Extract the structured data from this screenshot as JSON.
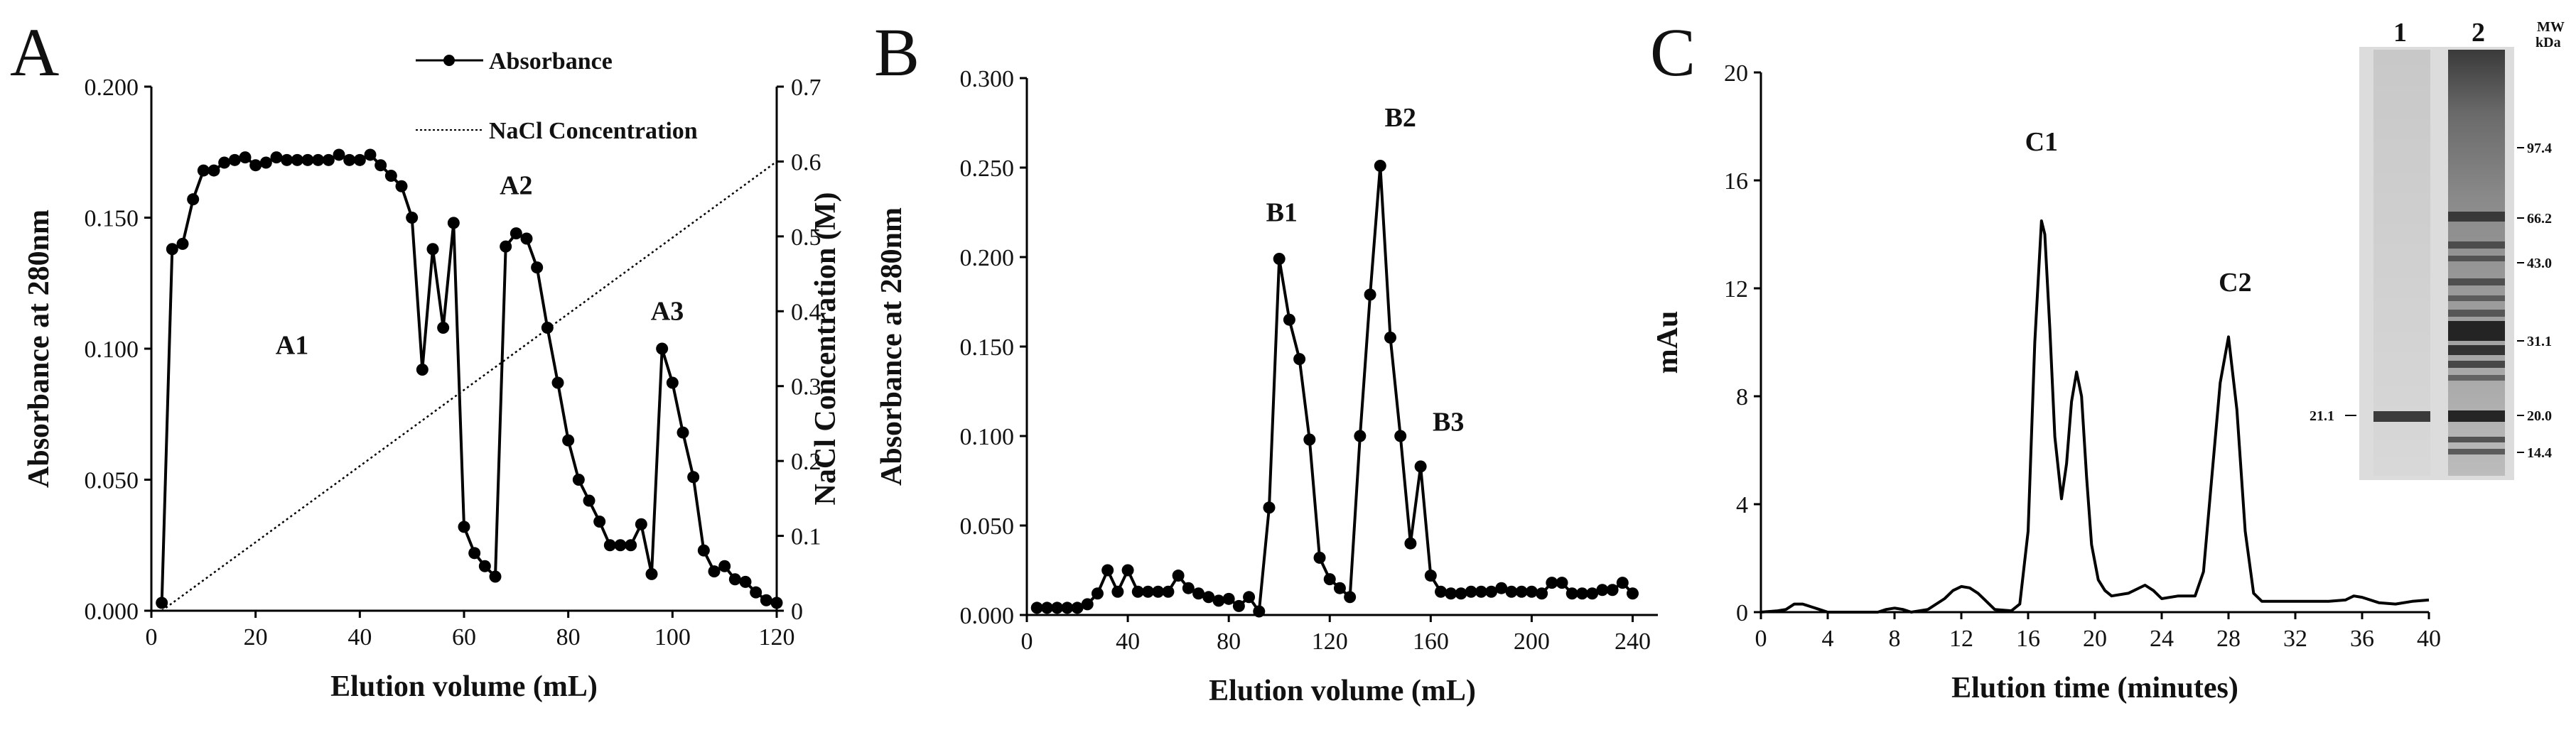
{
  "panels": {
    "a": {
      "letter": "A"
    },
    "b": {
      "letter": "B"
    },
    "c": {
      "letter": "C"
    }
  },
  "chart_data": [
    {
      "id": "A",
      "type": "line",
      "xlabel": "Elution volume (mL)",
      "ylabel": "Absorbance at 280nm",
      "y2label": "NaCl Concentration (M)",
      "xlim": [
        0,
        120
      ],
      "ylim": [
        0,
        0.2
      ],
      "y2lim": [
        0,
        0.7
      ],
      "xticks": [
        "0",
        "20",
        "40",
        "60",
        "80",
        "100",
        "120"
      ],
      "yticks": [
        "0.000",
        "0.050",
        "0.100",
        "0.150",
        "0.200"
      ],
      "y2ticks": [
        "0",
        "0.1",
        "0.2",
        "0.3",
        "0.4",
        "0.5",
        "0.6",
        "0.7"
      ],
      "legend": [
        {
          "name": "Absorbance",
          "style": "line-marker"
        },
        {
          "name": "NaCl Concentration",
          "style": "dotted"
        }
      ],
      "peak_labels": [
        {
          "text": "A1",
          "x": 27,
          "y": 0.098
        },
        {
          "text": "A2",
          "x": 70,
          "y": 0.159
        },
        {
          "text": "A3",
          "x": 99,
          "y": 0.111
        }
      ],
      "series": [
        {
          "name": "Absorbance",
          "x": [
            2,
            4,
            6,
            8,
            10,
            12,
            14,
            16,
            18,
            20,
            22,
            24,
            26,
            28,
            30,
            32,
            34,
            36,
            38,
            40,
            42,
            44,
            46,
            48,
            50,
            52,
            54,
            56,
            58,
            60,
            62,
            64,
            66,
            68,
            70,
            72,
            74,
            76,
            78,
            80,
            82,
            84,
            86,
            88,
            90,
            92,
            94,
            96,
            98,
            100,
            102,
            104,
            106,
            108,
            110,
            112,
            114,
            116,
            118,
            120
          ],
          "y": [
            0.003,
            0.138,
            0.14,
            0.157,
            0.168,
            0.168,
            0.171,
            0.172,
            0.173,
            0.17,
            0.171,
            0.173,
            0.172,
            0.172,
            0.172,
            0.172,
            0.172,
            0.174,
            0.172,
            0.172,
            0.174,
            0.17,
            0.166,
            0.162,
            0.15,
            0.092,
            0.138,
            0.108,
            0.148,
            0.032,
            0.022,
            0.017,
            0.013,
            0.139,
            0.144,
            0.142,
            0.131,
            0.108,
            0.087,
            0.065,
            0.05,
            0.042,
            0.034,
            0.025,
            0.025,
            0.025,
            0.033,
            0.014,
            0.1,
            0.087,
            0.068,
            0.051,
            0.023,
            0.015,
            0.017,
            0.012,
            0.011,
            0.007,
            0.004,
            0.003
          ]
        },
        {
          "name": "NaCl Concentration",
          "axis": "right",
          "x": [
            2,
            120
          ],
          "y": [
            0,
            0.6
          ]
        }
      ]
    },
    {
      "id": "B",
      "type": "line",
      "xlabel": "Elution volume (mL)",
      "ylabel": "Absorbance at 280nm",
      "xlim": [
        0,
        250
      ],
      "ylim": [
        0,
        0.3
      ],
      "xticks": [
        "0",
        "40",
        "80",
        "120",
        "160",
        "200",
        "240"
      ],
      "yticks": [
        "0.000",
        "0.050",
        "0.100",
        "0.150",
        "0.200",
        "0.250",
        "0.300"
      ],
      "peak_labels": [
        {
          "text": "B1",
          "x": 101,
          "y": 0.22
        },
        {
          "text": "B2",
          "x": 148,
          "y": 0.273
        },
        {
          "text": "B3",
          "x": 167,
          "y": 0.103
        }
      ],
      "series": [
        {
          "name": "Absorbance",
          "x": [
            4,
            8,
            12,
            16,
            20,
            24,
            28,
            32,
            36,
            40,
            44,
            48,
            52,
            56,
            60,
            64,
            68,
            72,
            76,
            80,
            84,
            88,
            92,
            96,
            100,
            104,
            108,
            112,
            116,
            120,
            124,
            128,
            132,
            136,
            140,
            144,
            148,
            152,
            156,
            160,
            164,
            168,
            172,
            176,
            180,
            184,
            188,
            192,
            196,
            200,
            204,
            208,
            212,
            216,
            220,
            224,
            228,
            232,
            236,
            240
          ],
          "y": [
            0.004,
            0.004,
            0.004,
            0.004,
            0.004,
            0.006,
            0.012,
            0.025,
            0.013,
            0.025,
            0.013,
            0.013,
            0.013,
            0.013,
            0.022,
            0.015,
            0.012,
            0.01,
            0.008,
            0.009,
            0.005,
            0.01,
            0.002,
            0.06,
            0.199,
            0.165,
            0.143,
            0.098,
            0.032,
            0.02,
            0.015,
            0.01,
            0.1,
            0.179,
            0.251,
            0.155,
            0.1,
            0.04,
            0.083,
            0.022,
            0.013,
            0.012,
            0.012,
            0.013,
            0.013,
            0.013,
            0.015,
            0.013,
            0.013,
            0.013,
            0.012,
            0.018,
            0.018,
            0.012,
            0.012,
            0.012,
            0.014,
            0.014,
            0.018,
            0.012
          ]
        }
      ]
    },
    {
      "id": "C",
      "type": "line",
      "xlabel": "Elution time (minutes)",
      "ylabel": "mAu",
      "xlim": [
        0,
        40
      ],
      "ylim": [
        0,
        20
      ],
      "xticks": [
        "0",
        "4",
        "8",
        "12",
        "16",
        "20",
        "24",
        "28",
        "32",
        "36",
        "40"
      ],
      "yticks": [
        "0",
        "4",
        "8",
        "12",
        "16",
        "20"
      ],
      "peak_labels": [
        {
          "text": "C1",
          "x": 16.8,
          "y": 17.1
        },
        {
          "text": "C2",
          "x": 28.4,
          "y": 11.9
        }
      ],
      "series": [
        {
          "name": "mAu",
          "x": [
            0,
            1,
            1.5,
            2,
            2.5,
            3,
            3.5,
            4,
            5,
            6,
            7,
            7.5,
            8,
            8.5,
            9,
            10,
            11,
            11.5,
            12,
            12.5,
            13,
            13.5,
            14,
            15,
            15.5,
            16,
            16.4,
            16.8,
            17,
            17.3,
            17.6,
            18,
            18.3,
            18.6,
            18.9,
            19.2,
            19.5,
            19.8,
            20.2,
            20.6,
            21,
            22,
            23,
            23.5,
            24,
            25,
            26,
            26.5,
            27,
            27.5,
            28,
            28.5,
            29,
            29.5,
            30,
            31,
            32,
            33,
            34,
            35,
            35.5,
            36,
            37,
            38,
            39,
            40
          ],
          "y": [
            0,
            0.05,
            0.1,
            0.3,
            0.3,
            0.2,
            0.1,
            0,
            0,
            0,
            0,
            0.1,
            0.15,
            0.1,
            0,
            0.1,
            0.5,
            0.8,
            0.95,
            0.9,
            0.7,
            0.4,
            0.1,
            0.05,
            0.3,
            3.0,
            10.0,
            14.5,
            14.0,
            10.5,
            6.5,
            4.2,
            5.5,
            7.8,
            8.9,
            8.0,
            5.0,
            2.5,
            1.2,
            0.8,
            0.6,
            0.7,
            1.0,
            0.8,
            0.5,
            0.6,
            0.6,
            1.5,
            5.0,
            8.5,
            10.2,
            7.5,
            3.0,
            0.7,
            0.4,
            0.4,
            0.4,
            0.4,
            0.4,
            0.45,
            0.6,
            0.55,
            0.35,
            0.3,
            0.4,
            0.45
          ]
        }
      ]
    }
  ],
  "gel": {
    "lanes": [
      "1",
      "2"
    ],
    "mw_header": [
      "MW",
      "kDa"
    ],
    "markers": [
      "97.4",
      "66.2",
      "43.0",
      "31.1",
      "20.0",
      "14.4"
    ],
    "band_label": "21.1"
  }
}
